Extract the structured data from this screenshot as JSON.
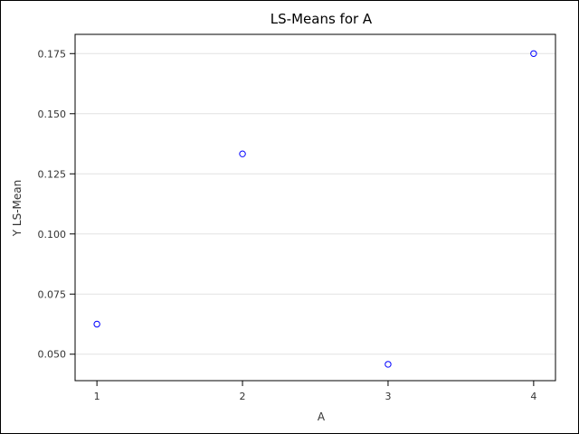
{
  "chart_data": {
    "type": "scatter",
    "title": "LS-Means for A",
    "xlabel": "A",
    "ylabel": "Y LS-Mean",
    "x": [
      1,
      2,
      3,
      4
    ],
    "y": [
      0.0625,
      0.1333,
      0.0458,
      0.175
    ],
    "xticks": [
      "1",
      "2",
      "3",
      "4"
    ],
    "yticks": [
      "0.050",
      "0.075",
      "0.100",
      "0.125",
      "0.150",
      "0.175"
    ],
    "xlim": [
      0.85,
      4.15
    ],
    "ylim": [
      0.039,
      0.183
    ],
    "grid": "horizontal",
    "legend": "none",
    "marker": "open circle",
    "marker_color": "#0000ff"
  }
}
